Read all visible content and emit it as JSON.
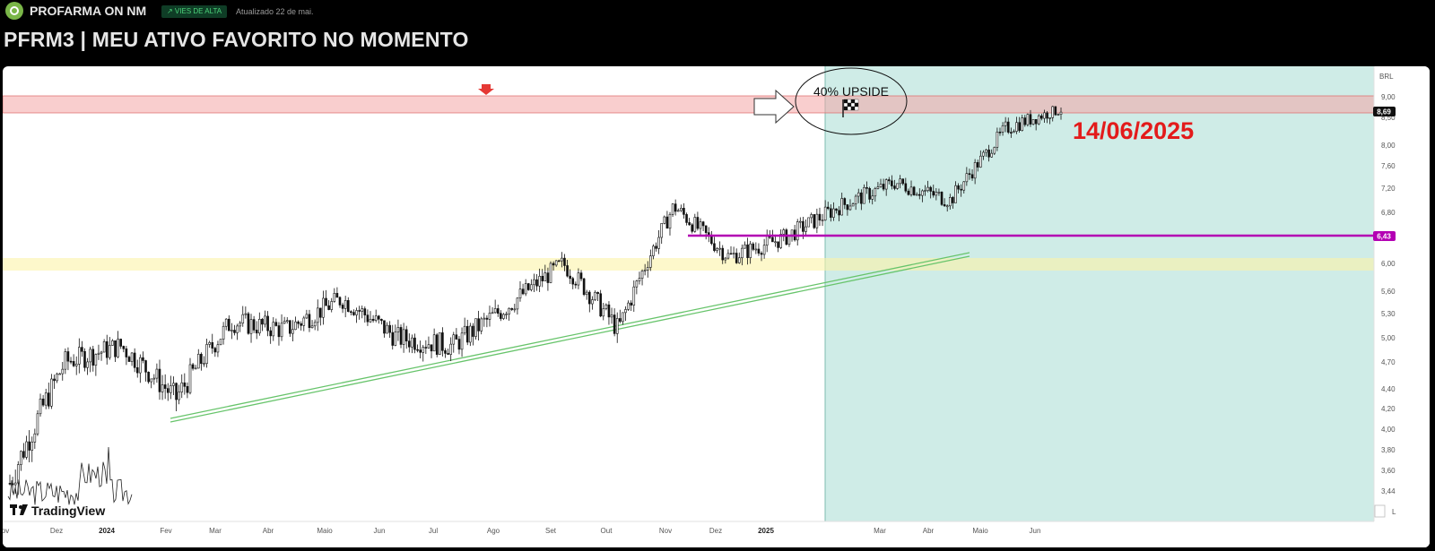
{
  "header": {
    "company_name": "PROFARMA ON NM",
    "badge": "↗ VIES DE ALTA",
    "updated": "Atualizado 22 de mai.",
    "title": "PFRM3 | MEU ATIVO FAVORITO NO MOMENTO"
  },
  "branding": {
    "logo_text": "TradingView"
  },
  "colors": {
    "up": "#000000",
    "resistance_zone": "#f4a6a6",
    "support_zone": "#fbf3a8",
    "forecast_zone": "#cfece7",
    "trendline": "#67c46b",
    "level_line": "#b300b3",
    "date_label": "#e31b1b"
  },
  "chart_data": {
    "type": "candlestick",
    "currency": "BRL",
    "y_ticks": [
      "9,00",
      "8,50",
      "8,00",
      "7,60",
      "7,20",
      "6,80",
      "6,00",
      "5,60",
      "5,30",
      "5,00",
      "4,70",
      "4,40",
      "4,20",
      "4,00",
      "3,80",
      "3,60",
      "3,44"
    ],
    "x_ticks": [
      "ov",
      "Dez",
      "2024",
      "Fev",
      "Mar",
      "Abr",
      "Maio",
      "Jun",
      "Jul",
      "Ago",
      "Set",
      "Out",
      "Nov",
      "Dez",
      "2025",
      "Mar",
      "Abr",
      "Maio",
      "Jun"
    ],
    "last_price": "8,69",
    "level_price": "6,43",
    "resistance_zone": [
      8.65,
      9.0
    ],
    "support_zone": [
      5.85,
      6.05
    ],
    "annotations": {
      "upside_text": "40% UPSIDE",
      "target_date": "14/06/2025"
    },
    "key_points": [
      {
        "x": "2023-11",
        "close": 3.5
      },
      {
        "x": "2023-12",
        "close": 4.7
      },
      {
        "x": "2024-01",
        "close": 4.9
      },
      {
        "x": "2024-02",
        "close": 4.3
      },
      {
        "x": "2024-03",
        "close": 5.2
      },
      {
        "x": "2024-04",
        "close": 5.1
      },
      {
        "x": "2024-05",
        "close": 5.5
      },
      {
        "x": "2024-06",
        "close": 5.0
      },
      {
        "x": "2024-07",
        "close": 4.9
      },
      {
        "x": "2024-08",
        "close": 5.4
      },
      {
        "x": "2024-09",
        "close": 6.0
      },
      {
        "x": "2024-10",
        "close": 5.1
      },
      {
        "x": "2024-11",
        "close": 6.9
      },
      {
        "x": "2024-12",
        "close": 6.1
      },
      {
        "x": "2025-01",
        "close": 6.4
      },
      {
        "x": "2025-02",
        "close": 6.9
      },
      {
        "x": "2025-03",
        "close": 7.3
      },
      {
        "x": "2025-04",
        "close": 7.0
      },
      {
        "x": "2025-05",
        "close": 8.3
      },
      {
        "x": "2025-06",
        "close": 8.69
      }
    ]
  }
}
